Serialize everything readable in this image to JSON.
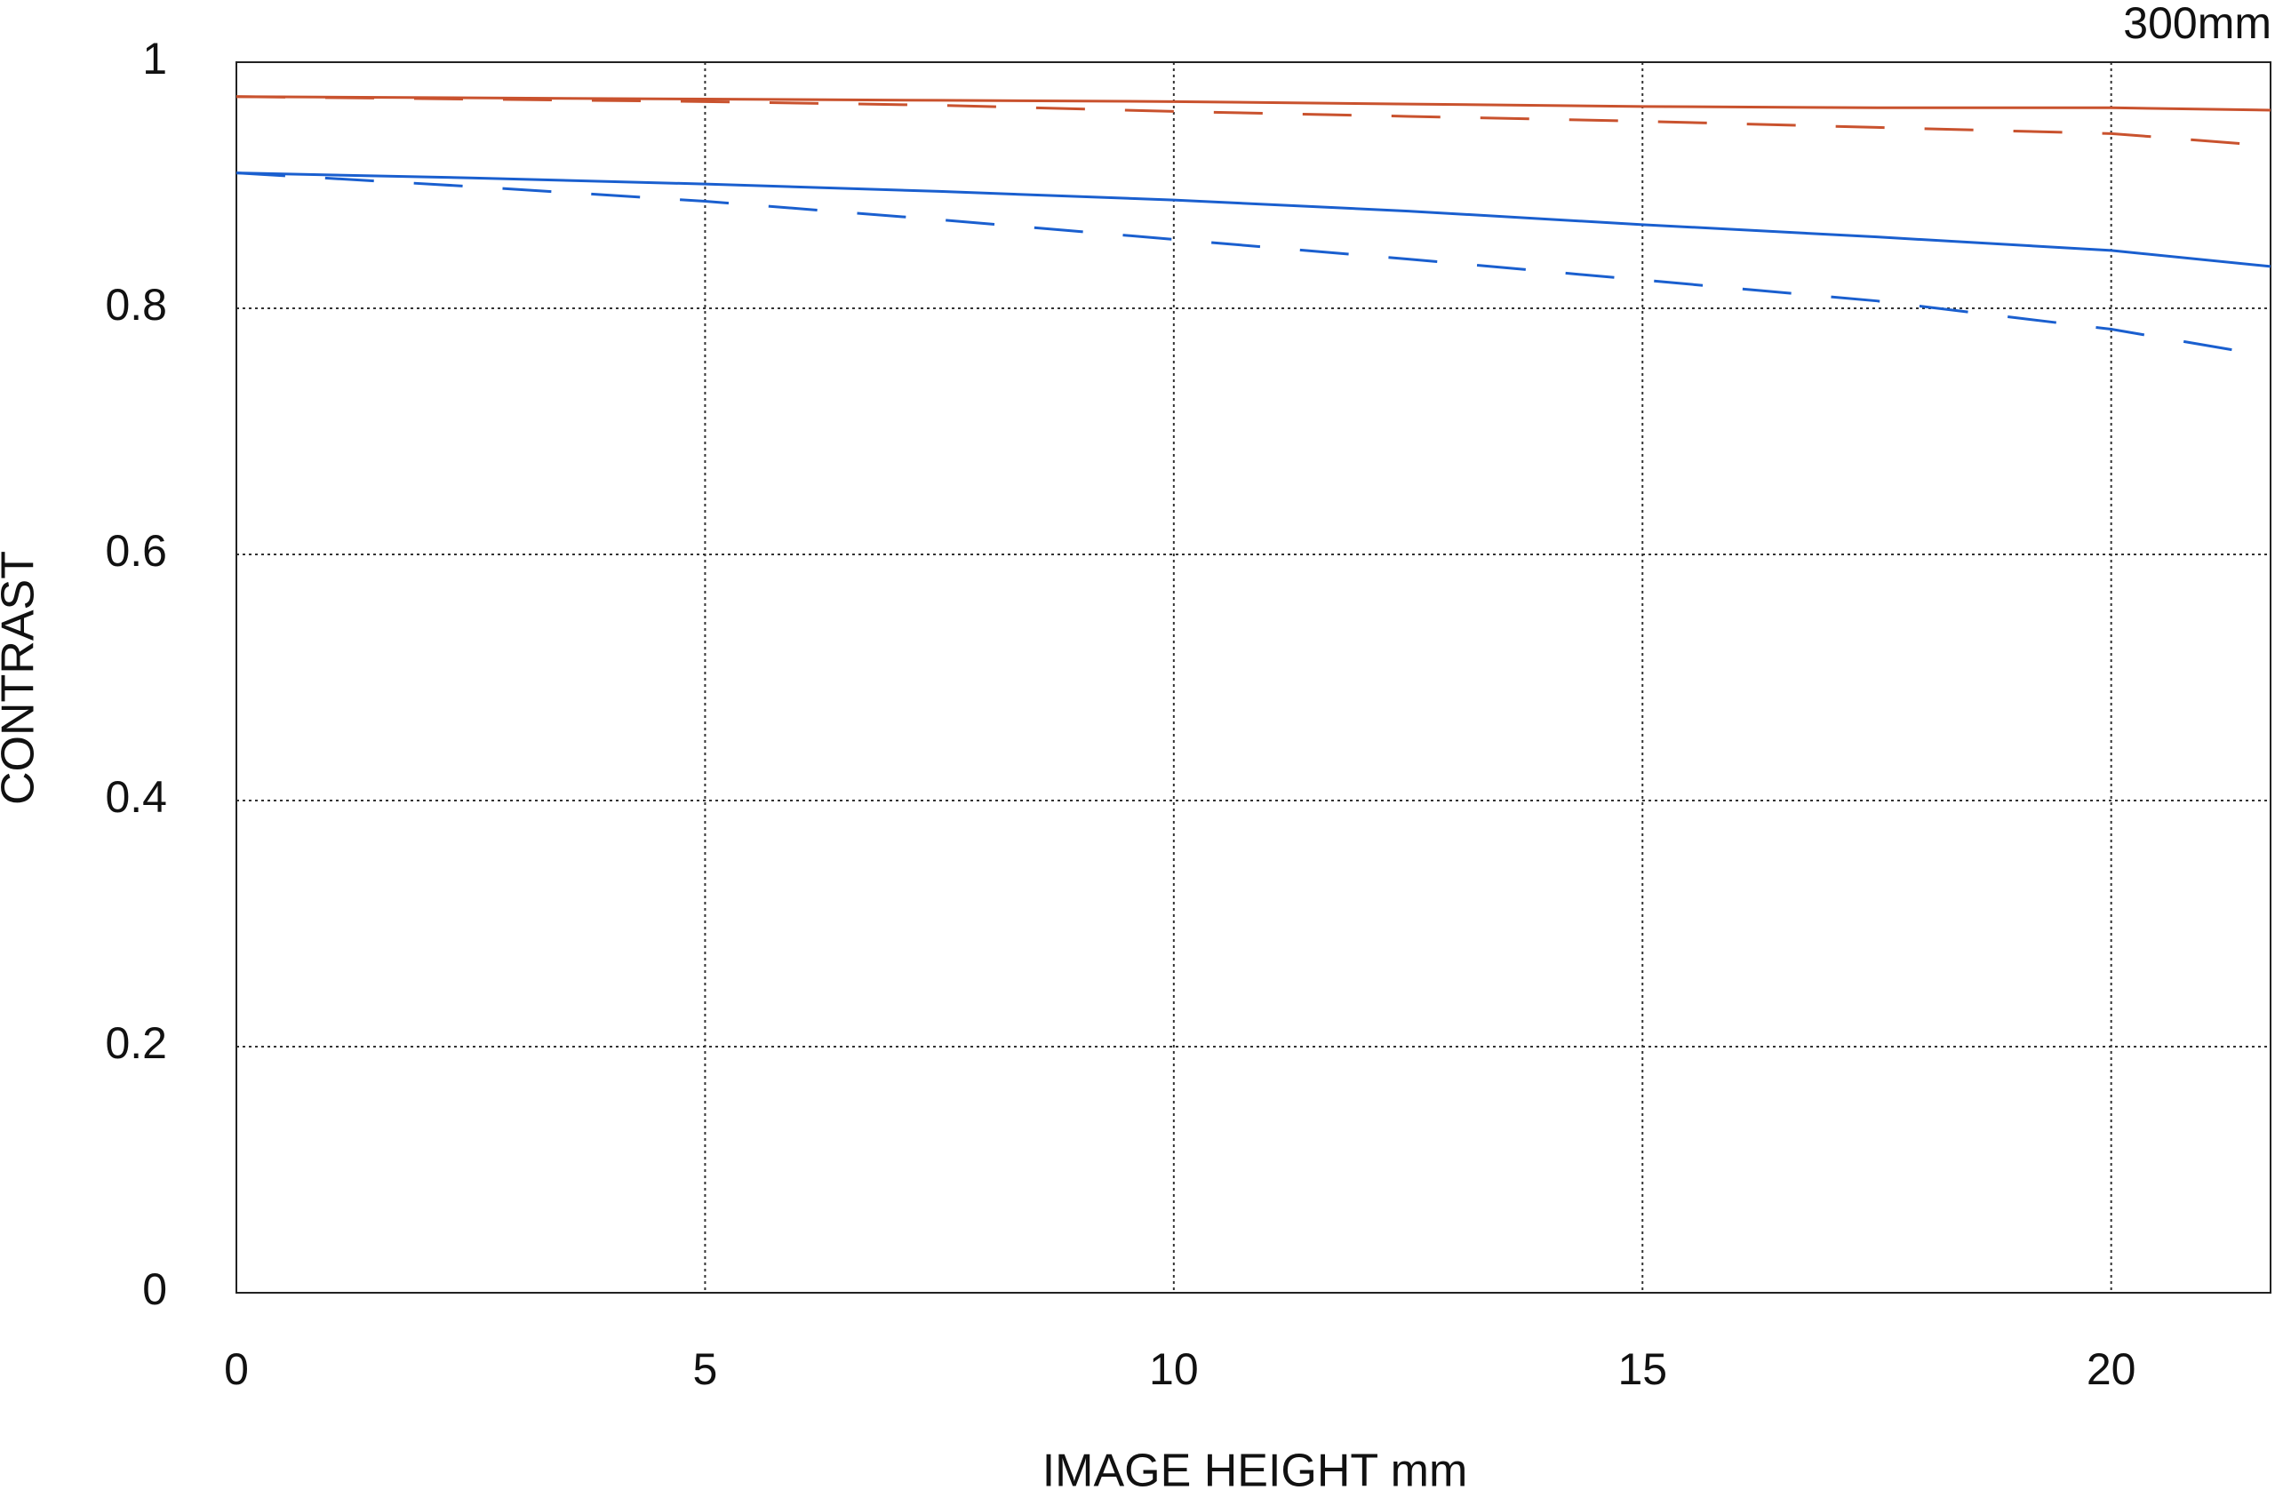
{
  "chart_data": {
    "type": "line",
    "annotation": "300mm",
    "x_label": "IMAGE HEIGHT  mm",
    "y_label": "CONTRAST",
    "x": [
      0,
      2.5,
      5,
      7.5,
      10,
      12.5,
      15,
      17.5,
      20,
      21.7
    ],
    "series": [
      {
        "color": "#c9522e",
        "dashed": false,
        "values": [
          0.972,
          0.971,
          0.97,
          0.969,
          0.968,
          0.966,
          0.964,
          0.963,
          0.963,
          0.961
        ]
      },
      {
        "color": "#c9522e",
        "dashed": true,
        "values": [
          0.972,
          0.97,
          0.968,
          0.965,
          0.96,
          0.956,
          0.952,
          0.947,
          0.942,
          0.932
        ]
      },
      {
        "color": "#1a5fcf",
        "dashed": false,
        "values": [
          0.91,
          0.906,
          0.901,
          0.895,
          0.888,
          0.879,
          0.868,
          0.858,
          0.847,
          0.834
        ]
      },
      {
        "color": "#1a5fcf",
        "dashed": true,
        "values": [
          0.91,
          0.899,
          0.887,
          0.872,
          0.856,
          0.84,
          0.823,
          0.806,
          0.783,
          0.761
        ]
      }
    ],
    "xlim": [
      0,
      21.7
    ],
    "ylim": [
      0,
      1
    ],
    "xticks": [
      0,
      5,
      10,
      15,
      20
    ],
    "yticks": [
      0,
      0.2,
      0.4,
      0.6,
      0.8,
      1
    ],
    "grid": true
  }
}
